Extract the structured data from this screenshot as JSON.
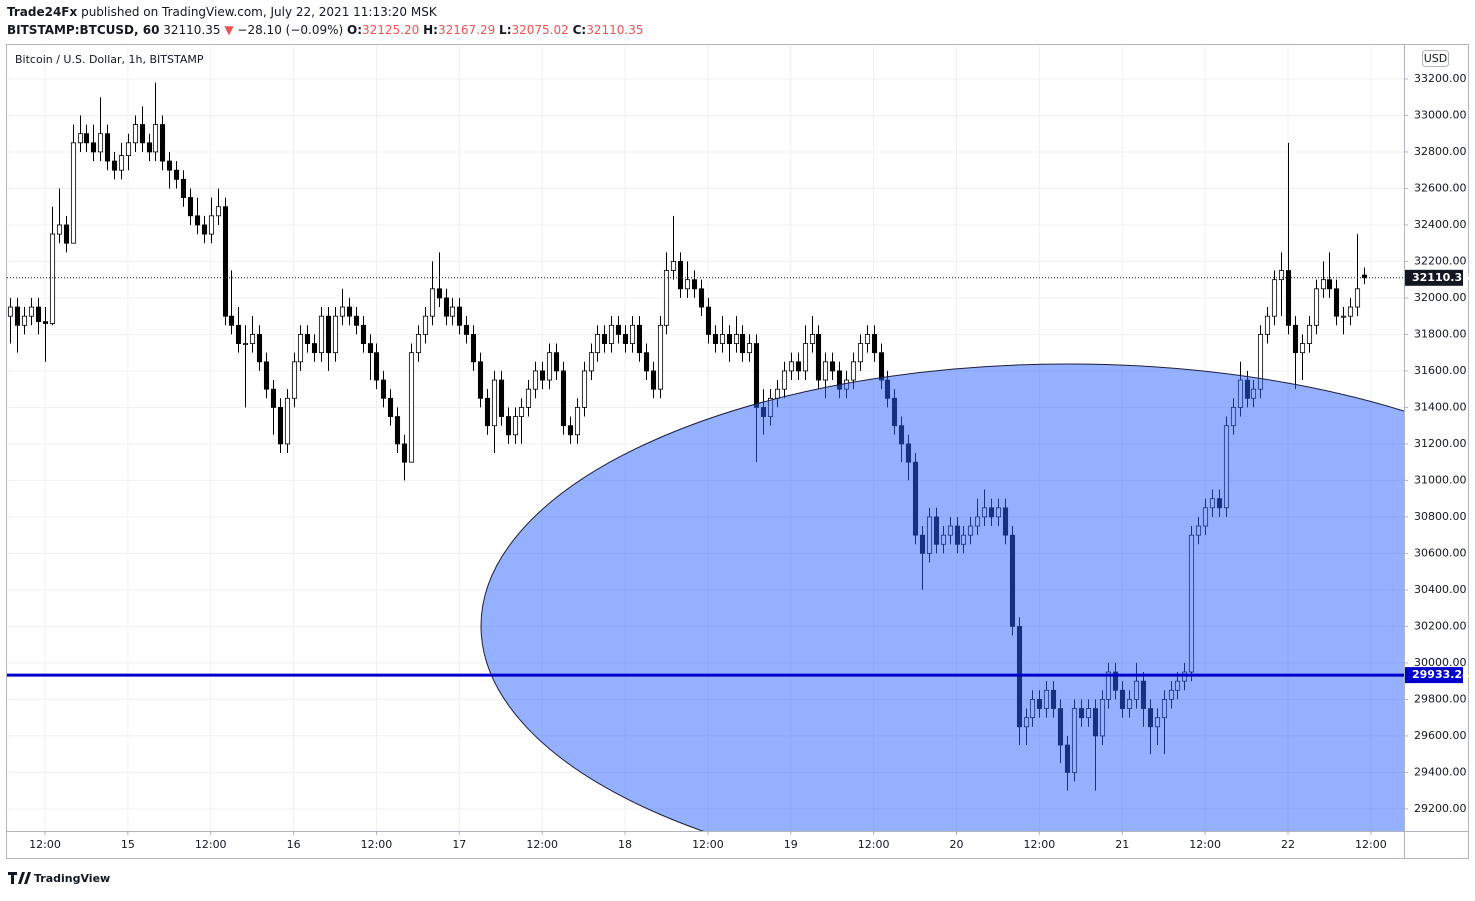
{
  "chart_data": {
    "type": "candlestick",
    "header": {
      "publisher": "Trade24Fx",
      "published": "published on TradingView.com, July 22, 2021 11:13:20 MSK",
      "symbol": "BITSTAMP:BTCUSD, 60",
      "last": "32110.35",
      "arrow": "▼",
      "change": "−28.10 (−0.09%)",
      "o_key": "O:",
      "o": "32125.20",
      "h_key": "H:",
      "h": "32167.29",
      "l_key": "L:",
      "l": "32075.02",
      "c_key": "C:",
      "c": "32110.35"
    },
    "title": "Bitcoin / U.S. Dollar, 1h, BITSTAMP",
    "currency": "USD",
    "footer": "TradingView",
    "up_color": "#ffffff",
    "down_color": "#000000",
    "line_color": "#0000cc",
    "ellipse_color": "#2962ff",
    "grid": true,
    "hline": 29933.24,
    "last_price": 32110.35,
    "xlim": [
      -0.5,
      201.8
    ],
    "ylim": [
      29079,
      33386
    ],
    "xticks": [
      {
        "value": 5,
        "label": "12:00"
      },
      {
        "value": 17,
        "label": "15"
      },
      {
        "value": 29,
        "label": "12:00"
      },
      {
        "value": 41,
        "label": "16"
      },
      {
        "value": 53,
        "label": "12:00"
      },
      {
        "value": 65,
        "label": "17"
      },
      {
        "value": 77,
        "label": "12:00"
      },
      {
        "value": 89,
        "label": "18"
      },
      {
        "value": 101,
        "label": "12:00"
      },
      {
        "value": 113,
        "label": "19"
      },
      {
        "value": 125,
        "label": "12:00"
      },
      {
        "value": 137,
        "label": "20"
      },
      {
        "value": 149,
        "label": "12:00"
      },
      {
        "value": 161,
        "label": "21"
      },
      {
        "value": 173,
        "label": "12:00"
      },
      {
        "value": 185,
        "label": "22"
      },
      {
        "value": 197,
        "label": "12:00"
      }
    ],
    "yticks": [
      {
        "value": 29200,
        "label": "29200.00"
      },
      {
        "value": 29400,
        "label": "29400.00"
      },
      {
        "value": 29600,
        "label": "29600.00"
      },
      {
        "value": 29800,
        "label": "29800.00"
      },
      {
        "value": 30000,
        "label": "30000.00"
      },
      {
        "value": 30200,
        "label": "30200.00"
      },
      {
        "value": 30400,
        "label": "30400.00"
      },
      {
        "value": 30600,
        "label": "30600.00"
      },
      {
        "value": 30800,
        "label": "30800.00"
      },
      {
        "value": 31000,
        "label": "31000.00"
      },
      {
        "value": 31200,
        "label": "31200.00"
      },
      {
        "value": 31400,
        "label": "31400.00"
      },
      {
        "value": 31600,
        "label": "31600.00"
      },
      {
        "value": 31800,
        "label": "31800.00"
      },
      {
        "value": 32000,
        "label": "32000.00"
      },
      {
        "value": 32200,
        "label": "32200.00"
      },
      {
        "value": 32400,
        "label": "32400.00"
      },
      {
        "value": 32600,
        "label": "32600.00"
      },
      {
        "value": 32800,
        "label": "32800.00"
      },
      {
        "value": 33000,
        "label": "33000.00"
      },
      {
        "value": 33200,
        "label": "33200.00"
      }
    ],
    "candles": [
      [
        31900,
        32000,
        31750,
        31950
      ],
      [
        31950,
        32000,
        31700,
        31850
      ],
      [
        31850,
        31950,
        31800,
        31900
      ],
      [
        31900,
        32000,
        31850,
        31950
      ],
      [
        31950,
        32000,
        31800,
        31870
      ],
      [
        31870,
        31950,
        31650,
        31860
      ],
      [
        31860,
        32500,
        31850,
        32350
      ],
      [
        32350,
        32600,
        32300,
        32400
      ],
      [
        32400,
        32450,
        32250,
        32300
      ],
      [
        32300,
        32950,
        32300,
        32850
      ],
      [
        32850,
        33000,
        32800,
        32900
      ],
      [
        32900,
        32950,
        32800,
        32850
      ],
      [
        32850,
        32950,
        32750,
        32800
      ],
      [
        32800,
        33100,
        32750,
        32900
      ],
      [
        32900,
        32950,
        32700,
        32750
      ],
      [
        32750,
        32800,
        32650,
        32700
      ],
      [
        32700,
        32850,
        32650,
        32780
      ],
      [
        32780,
        32900,
        32700,
        32850
      ],
      [
        32850,
        33000,
        32800,
        32950
      ],
      [
        32950,
        33050,
        32800,
        32850
      ],
      [
        32850,
        32900,
        32750,
        32800
      ],
      [
        32800,
        33180,
        32750,
        32950
      ],
      [
        32950,
        33000,
        32700,
        32750
      ],
      [
        32750,
        32800,
        32600,
        32700
      ],
      [
        32700,
        32750,
        32600,
        32650
      ],
      [
        32650,
        32700,
        32500,
        32550
      ],
      [
        32550,
        32600,
        32400,
        32450
      ],
      [
        32450,
        32550,
        32350,
        32400
      ],
      [
        32400,
        32450,
        32300,
        32350
      ],
      [
        32350,
        32550,
        32300,
        32450
      ],
      [
        32450,
        32600,
        32400,
        32500
      ],
      [
        32500,
        32550,
        31850,
        31900
      ],
      [
        31900,
        32150,
        31800,
        31850
      ],
      [
        31850,
        31950,
        31700,
        31750
      ],
      [
        31750,
        31850,
        31400,
        31750
      ],
      [
        31750,
        31900,
        31700,
        31800
      ],
      [
        31800,
        31850,
        31600,
        31650
      ],
      [
        31650,
        31700,
        31450,
        31500
      ],
      [
        31500,
        31550,
        31250,
        31400
      ],
      [
        31400,
        31450,
        31150,
        31200
      ],
      [
        31200,
        31500,
        31150,
        31450
      ],
      [
        31450,
        31700,
        31400,
        31650
      ],
      [
        31650,
        31850,
        31600,
        31800
      ],
      [
        31800,
        31850,
        31700,
        31750
      ],
      [
        31750,
        31800,
        31650,
        31700
      ],
      [
        31700,
        31950,
        31650,
        31900
      ],
      [
        31900,
        31950,
        31600,
        31700
      ],
      [
        31700,
        31950,
        31650,
        31900
      ],
      [
        31900,
        32050,
        31850,
        31950
      ],
      [
        31950,
        32000,
        31850,
        31900
      ],
      [
        31900,
        31950,
        31800,
        31850
      ],
      [
        31850,
        31900,
        31700,
        31750
      ],
      [
        31750,
        31800,
        31550,
        31700
      ],
      [
        31700,
        31750,
        31500,
        31550
      ],
      [
        31550,
        31600,
        31400,
        31450
      ],
      [
        31450,
        31500,
        31300,
        31350
      ],
      [
        31350,
        31400,
        31150,
        31200
      ],
      [
        31200,
        31250,
        31000,
        31100
      ],
      [
        31100,
        31750,
        31100,
        31700
      ],
      [
        31700,
        31850,
        31650,
        31800
      ],
      [
        31800,
        31950,
        31750,
        31900
      ],
      [
        31900,
        32200,
        31850,
        32050
      ],
      [
        32050,
        32250,
        31950,
        32000
      ],
      [
        32000,
        32050,
        31850,
        31900
      ],
      [
        31900,
        32000,
        31850,
        31950
      ],
      [
        31950,
        32000,
        31800,
        31850
      ],
      [
        31850,
        31900,
        31750,
        31800
      ],
      [
        31800,
        31850,
        31600,
        31650
      ],
      [
        31650,
        31700,
        31400,
        31450
      ],
      [
        31450,
        31500,
        31250,
        31300
      ],
      [
        31300,
        31600,
        31150,
        31550
      ],
      [
        31550,
        31600,
        31300,
        31350
      ],
      [
        31350,
        31400,
        31200,
        31250
      ],
      [
        31250,
        31400,
        31200,
        31350
      ],
      [
        31350,
        31450,
        31200,
        31400
      ],
      [
        31400,
        31550,
        31350,
        31500
      ],
      [
        31500,
        31650,
        31450,
        31600
      ],
      [
        31600,
        31650,
        31500,
        31550
      ],
      [
        31550,
        31750,
        31500,
        31700
      ],
      [
        31700,
        31750,
        31550,
        31600
      ],
      [
        31600,
        31650,
        31250,
        31300
      ],
      [
        31300,
        31350,
        31200,
        31250
      ],
      [
        31250,
        31450,
        31200,
        31400
      ],
      [
        31400,
        31650,
        31350,
        31600
      ],
      [
        31600,
        31750,
        31550,
        31700
      ],
      [
        31700,
        31850,
        31650,
        31800
      ],
      [
        31800,
        31850,
        31700,
        31750
      ],
      [
        31750,
        31900,
        31700,
        31850
      ],
      [
        31850,
        31900,
        31750,
        31800
      ],
      [
        31800,
        31850,
        31700,
        31750
      ],
      [
        31750,
        31900,
        31700,
        31850
      ],
      [
        31850,
        31900,
        31650,
        31700
      ],
      [
        31700,
        31750,
        31550,
        31600
      ],
      [
        31600,
        31650,
        31450,
        31500
      ],
      [
        31500,
        31900,
        31450,
        31850
      ],
      [
        31850,
        32250,
        31800,
        32150
      ],
      [
        32150,
        32450,
        32100,
        32200
      ],
      [
        32200,
        32250,
        32000,
        32050
      ],
      [
        32050,
        32200,
        32000,
        32100
      ],
      [
        32100,
        32150,
        32000,
        32050
      ],
      [
        32050,
        32100,
        31900,
        31950
      ],
      [
        31950,
        32000,
        31750,
        31800
      ],
      [
        31800,
        31850,
        31700,
        31750
      ],
      [
        31750,
        31900,
        31700,
        31800
      ],
      [
        31800,
        31850,
        31650,
        31750
      ],
      [
        31750,
        31900,
        31700,
        31800
      ],
      [
        31800,
        31850,
        31650,
        31700
      ],
      [
        31700,
        31800,
        31650,
        31750
      ],
      [
        31750,
        31800,
        31100,
        31400
      ],
      [
        31400,
        31500,
        31250,
        31350
      ],
      [
        31350,
        31500,
        31300,
        31450
      ],
      [
        31450,
        31550,
        31400,
        31500
      ],
      [
        31500,
        31650,
        31450,
        31600
      ],
      [
        31600,
        31700,
        31550,
        31650
      ],
      [
        31650,
        31700,
        31550,
        31600
      ],
      [
        31600,
        31850,
        31550,
        31750
      ],
      [
        31750,
        31900,
        31700,
        31800
      ],
      [
        31800,
        31850,
        31500,
        31550
      ],
      [
        31550,
        31700,
        31450,
        31650
      ],
      [
        31650,
        31700,
        31550,
        31600
      ],
      [
        31600,
        31650,
        31450,
        31500
      ],
      [
        31500,
        31600,
        31450,
        31550
      ],
      [
        31550,
        31700,
        31500,
        31650
      ],
      [
        31650,
        31800,
        31600,
        31750
      ],
      [
        31750,
        31850,
        31700,
        31800
      ],
      [
        31800,
        31850,
        31650,
        31700
      ],
      [
        31700,
        31750,
        31500,
        31550
      ],
      [
        31550,
        31600,
        31400,
        31450
      ],
      [
        31450,
        31500,
        31250,
        31300
      ],
      [
        31300,
        31350,
        31100,
        31200
      ],
      [
        31200,
        31250,
        31000,
        31100
      ],
      [
        31100,
        31150,
        30650,
        30700
      ],
      [
        30700,
        30750,
        30400,
        30600
      ],
      [
        30600,
        30850,
        30550,
        30800
      ],
      [
        30800,
        30850,
        30600,
        30650
      ],
      [
        30650,
        30750,
        30600,
        30700
      ],
      [
        30700,
        30800,
        30650,
        30750
      ],
      [
        30750,
        30800,
        30600,
        30650
      ],
      [
        30650,
        30750,
        30600,
        30700
      ],
      [
        30700,
        30800,
        30650,
        30750
      ],
      [
        30750,
        30900,
        30700,
        30800
      ],
      [
        30800,
        30950,
        30750,
        30850
      ],
      [
        30850,
        30900,
        30750,
        30800
      ],
      [
        30800,
        30900,
        30750,
        30850
      ],
      [
        30850,
        30900,
        30650,
        30700
      ],
      [
        30700,
        30750,
        30150,
        30200
      ],
      [
        30200,
        30250,
        29550,
        29650
      ],
      [
        29650,
        29750,
        29550,
        29700
      ],
      [
        29700,
        29850,
        29650,
        29800
      ],
      [
        29800,
        29850,
        29700,
        29750
      ],
      [
        29750,
        29900,
        29700,
        29850
      ],
      [
        29850,
        29900,
        29700,
        29750
      ],
      [
        29750,
        29800,
        29450,
        29550
      ],
      [
        29550,
        29600,
        29300,
        29400
      ],
      [
        29400,
        29800,
        29350,
        29750
      ],
      [
        29750,
        29800,
        29650,
        29700
      ],
      [
        29700,
        29800,
        29650,
        29750
      ],
      [
        29750,
        29800,
        29300,
        29600
      ],
      [
        29600,
        29850,
        29550,
        29800
      ],
      [
        29800,
        30000,
        29750,
        29950
      ],
      [
        29950,
        30000,
        29800,
        29850
      ],
      [
        29850,
        29900,
        29700,
        29750
      ],
      [
        29750,
        29850,
        29700,
        29800
      ],
      [
        29800,
        30000,
        29750,
        29900
      ],
      [
        29900,
        29950,
        29650,
        29750
      ],
      [
        29750,
        29800,
        29500,
        29650
      ],
      [
        29650,
        29750,
        29550,
        29700
      ],
      [
        29700,
        29850,
        29500,
        29800
      ],
      [
        29800,
        29900,
        29750,
        29850
      ],
      [
        29850,
        29950,
        29800,
        29900
      ],
      [
        29900,
        30000,
        29850,
        29950
      ],
      [
        29950,
        30750,
        29900,
        30700
      ],
      [
        30700,
        30800,
        30650,
        30750
      ],
      [
        30750,
        30900,
        30700,
        30850
      ],
      [
        30850,
        30950,
        30800,
        30900
      ],
      [
        30900,
        30950,
        30800,
        30850
      ],
      [
        30850,
        31350,
        30800,
        31300
      ],
      [
        31300,
        31450,
        31250,
        31400
      ],
      [
        31400,
        31650,
        31350,
        31550
      ],
      [
        31550,
        31600,
        31400,
        31450
      ],
      [
        31450,
        31550,
        31400,
        31500
      ],
      [
        31500,
        31850,
        31450,
        31800
      ],
      [
        31800,
        31950,
        31750,
        31900
      ],
      [
        31900,
        32150,
        31850,
        32100
      ],
      [
        32100,
        32250,
        31900,
        32150
      ],
      [
        32150,
        32850,
        31800,
        31850
      ],
      [
        31850,
        31900,
        31500,
        31700
      ],
      [
        31700,
        31800,
        31550,
        31750
      ],
      [
        31750,
        31900,
        31700,
        31850
      ],
      [
        31850,
        32100,
        31800,
        32050
      ],
      [
        32050,
        32200,
        32000,
        32100
      ],
      [
        32100,
        32250,
        32000,
        32050
      ],
      [
        32050,
        32100,
        31850,
        31900
      ],
      [
        31900,
        31950,
        31800,
        31900
      ],
      [
        31900,
        32000,
        31850,
        31950
      ],
      [
        31950,
        32350,
        31900,
        32050
      ],
      [
        32125.2,
        32167.29,
        32075.02,
        32110.35
      ]
    ]
  }
}
